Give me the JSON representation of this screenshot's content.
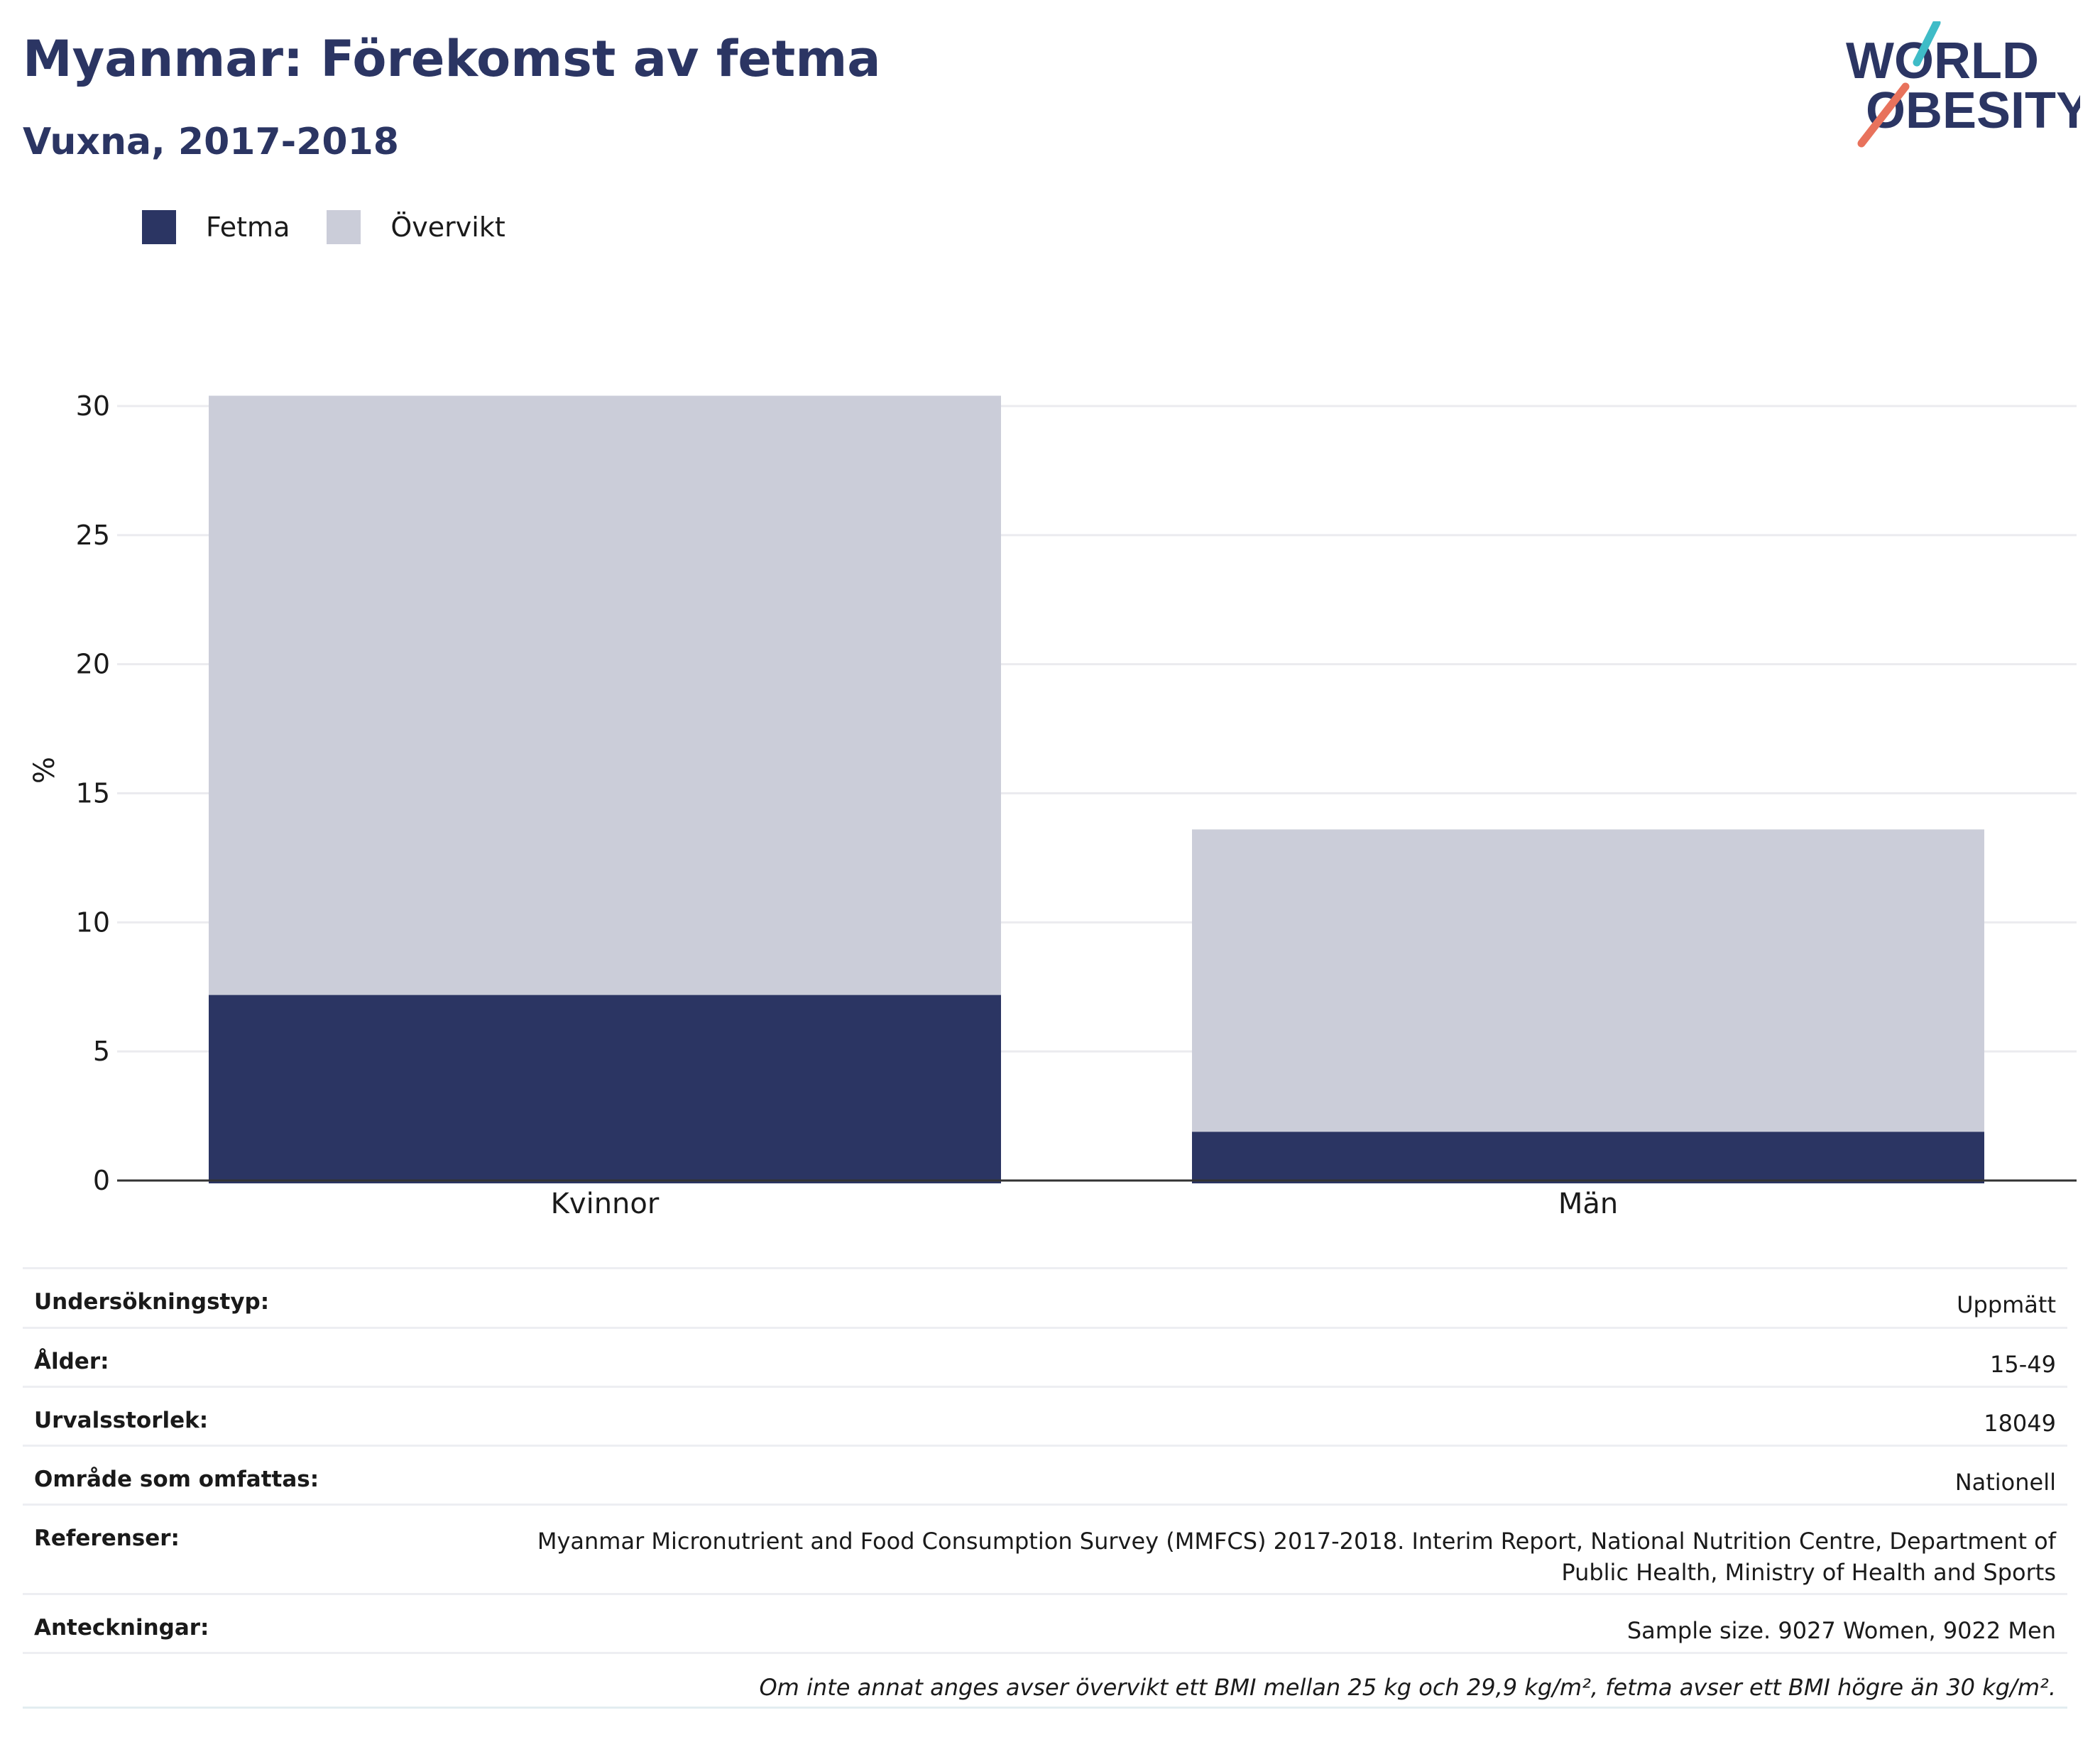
{
  "title": "Myanmar: Förekomst av fetma",
  "subtitle": "Vuxna, 2017-2018",
  "logo": {
    "line1": "WORLD",
    "line2": "OBESITY",
    "accent_teal": "#3fbcc7",
    "accent_coral": "#e8725c",
    "text_color": "#2b3563"
  },
  "legend": [
    {
      "label": "Fetma",
      "color": "#2b3563"
    },
    {
      "label": "Övervikt",
      "color": "#cbcdd9"
    }
  ],
  "chart_data": {
    "type": "bar",
    "stacked": true,
    "categories": [
      "Kvinnor",
      "Män"
    ],
    "series": [
      {
        "name": "Fetma",
        "color": "#2b3563",
        "values": [
          7.2,
          1.9
        ]
      },
      {
        "name": "Övervikt",
        "color": "#cbcdd9",
        "values": [
          23.2,
          11.7
        ]
      }
    ],
    "ylabel": "%",
    "xlabel": "",
    "ylim": [
      0,
      30
    ],
    "yticks": [
      0,
      5,
      10,
      15,
      20,
      25,
      30
    ],
    "grid": true,
    "legend_position": "top-left"
  },
  "info": [
    {
      "key": "Undersökningstyp:",
      "value": "Uppmätt"
    },
    {
      "key": "Ålder:",
      "value": "15-49"
    },
    {
      "key": "Urvalsstorlek:",
      "value": "18049"
    },
    {
      "key": "Område som omfattas:",
      "value": "Nationell"
    },
    {
      "key": "Referenser:",
      "value": "Myanmar Micronutrient and Food Consumption Survey (MMFCS) 2017-2018. Interim Report, National Nutrition Centre, Department of Public Health, Ministry of Health and Sports"
    },
    {
      "key": "Anteckningar:",
      "value": "Sample size. 9027 Women, 9022 Men"
    }
  ],
  "note": "Om inte annat anges avser övervikt ett BMI mellan 25 kg och 29,9 kg/m², fetma avser ett BMI högre än 30 kg/m²."
}
